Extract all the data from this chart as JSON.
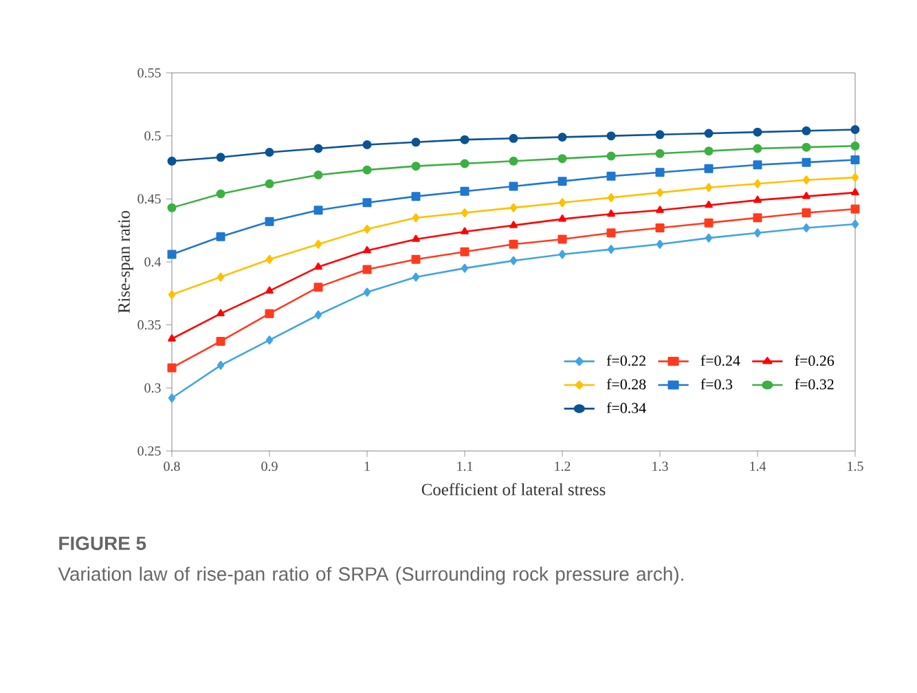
{
  "chart_data": {
    "type": "line",
    "title": "FIGURE 5",
    "subtitle": "Variation law of rise-pan ratio of SRPA (Surrounding rock pressure arch).",
    "xlabel": "Coefficient of lateral stress",
    "ylabel": "Rise-span ratio",
    "x": [
      0.8,
      0.85,
      0.9,
      0.95,
      1.0,
      1.05,
      1.1,
      1.15,
      1.2,
      1.25,
      1.3,
      1.35,
      1.4,
      1.45,
      1.5
    ],
    "xlim": [
      0.8,
      1.5
    ],
    "xticks": [
      0.8,
      0.9,
      1,
      1.1,
      1.2,
      1.3,
      1.4,
      1.5
    ],
    "ylim": [
      0.25,
      0.55
    ],
    "yticks": [
      0.25,
      0.3,
      0.35,
      0.4,
      0.45,
      0.5,
      0.55
    ],
    "grid": false,
    "legend": "bottom right",
    "line_style": "solid",
    "series": [
      {
        "name": "f=0.22",
        "color": "#41a5e1",
        "marker": "diamond",
        "values": [
          0.292,
          0.318,
          0.338,
          0.358,
          0.376,
          0.388,
          0.395,
          0.401,
          0.406,
          0.41,
          0.414,
          0.419,
          0.423,
          0.427,
          0.43
        ]
      },
      {
        "name": "f=0.24",
        "color": "#ff3b1f",
        "marker": "square",
        "values": [
          0.316,
          0.337,
          0.359,
          0.38,
          0.394,
          0.402,
          0.408,
          0.414,
          0.418,
          0.423,
          0.427,
          0.431,
          0.435,
          0.439,
          0.442
        ]
      },
      {
        "name": "f=0.26",
        "color": "#ff0000",
        "marker": "triangle",
        "values": [
          0.339,
          0.359,
          0.377,
          0.396,
          0.409,
          0.418,
          0.424,
          0.429,
          0.434,
          0.438,
          0.441,
          0.445,
          0.449,
          0.452,
          0.455
        ]
      },
      {
        "name": "f=0.28",
        "color": "#ffc000",
        "marker": "diamond",
        "values": [
          0.374,
          0.388,
          0.402,
          0.414,
          0.426,
          0.435,
          0.439,
          0.443,
          0.447,
          0.451,
          0.455,
          0.459,
          0.462,
          0.465,
          0.467
        ]
      },
      {
        "name": "f=0.3",
        "color": "#1f77d0",
        "marker": "square",
        "values": [
          0.406,
          0.42,
          0.432,
          0.441,
          0.447,
          0.452,
          0.456,
          0.46,
          0.464,
          0.468,
          0.471,
          0.474,
          0.477,
          0.479,
          0.481
        ]
      },
      {
        "name": "f=0.32",
        "color": "#3cb043",
        "marker": "circle",
        "values": [
          0.443,
          0.454,
          0.462,
          0.469,
          0.473,
          0.476,
          0.478,
          0.48,
          0.482,
          0.484,
          0.486,
          0.488,
          0.49,
          0.491,
          0.492
        ]
      },
      {
        "name": "f=0.34",
        "color": "#0b5394",
        "marker": "circle",
        "values": [
          0.48,
          0.483,
          0.487,
          0.49,
          0.493,
          0.495,
          0.497,
          0.498,
          0.499,
          0.5,
          0.501,
          0.502,
          0.503,
          0.504,
          0.505
        ]
      }
    ]
  }
}
